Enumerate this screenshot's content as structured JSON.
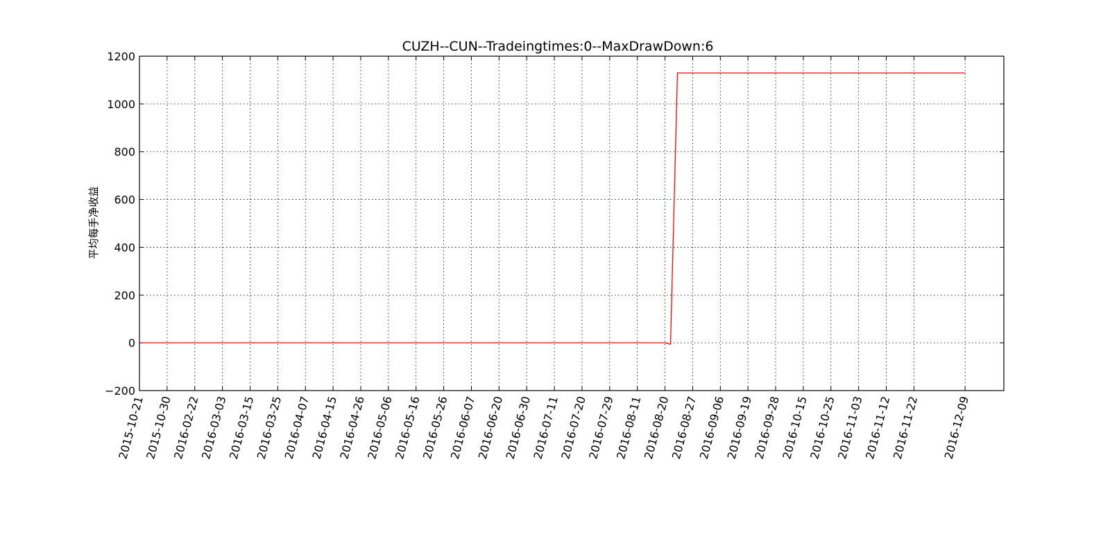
{
  "chart_data": {
    "type": "line",
    "title": "CUZH--CUN--Tradeingtimes:0--MaxDrawDown:6",
    "xlabel": "",
    "ylabel": "平均每手净收益",
    "ylim": [
      -200,
      1200
    ],
    "yticks": [
      -200,
      0,
      200,
      400,
      600,
      800,
      1000,
      1200
    ],
    "ytick_labels": [
      "−200",
      "0",
      "200",
      "400",
      "600",
      "800",
      "1000",
      "1200"
    ],
    "grid": true,
    "x_tick_labels": [
      "2015-10-21",
      "2015-10-30",
      "2016-02-22",
      "2016-03-03",
      "2016-03-15",
      "2016-03-25",
      "2016-04-07",
      "2016-04-15",
      "2016-04-26",
      "2016-05-06",
      "2016-05-16",
      "2016-05-26",
      "2016-06-07",
      "2016-06-20",
      "2016-06-30",
      "2016-07-11",
      "2016-07-20",
      "2016-07-29",
      "2016-08-11",
      "2016-08-20",
      "2016-08-27",
      "2016-09-06",
      "2016-09-19",
      "2016-09-28",
      "2016-10-15",
      "2016-10-25",
      "2016-11-03",
      "2016-11-12",
      "2016-11-22",
      "2016-12-09"
    ],
    "x_tick_positions": [
      0,
      1,
      2,
      3,
      4,
      5,
      6,
      7,
      8,
      9,
      10,
      11,
      12,
      13,
      14,
      15,
      16,
      17,
      18,
      19,
      20,
      21,
      22,
      23,
      24,
      25,
      26,
      27,
      28,
      29.85
    ],
    "xlim": [
      0,
      31.25
    ],
    "series": [
      {
        "color": "#ff0000",
        "x": [
          0,
          19,
          19.2,
          19.45,
          29.85
        ],
        "y": [
          0,
          0,
          -6,
          1130,
          1130
        ]
      }
    ]
  }
}
